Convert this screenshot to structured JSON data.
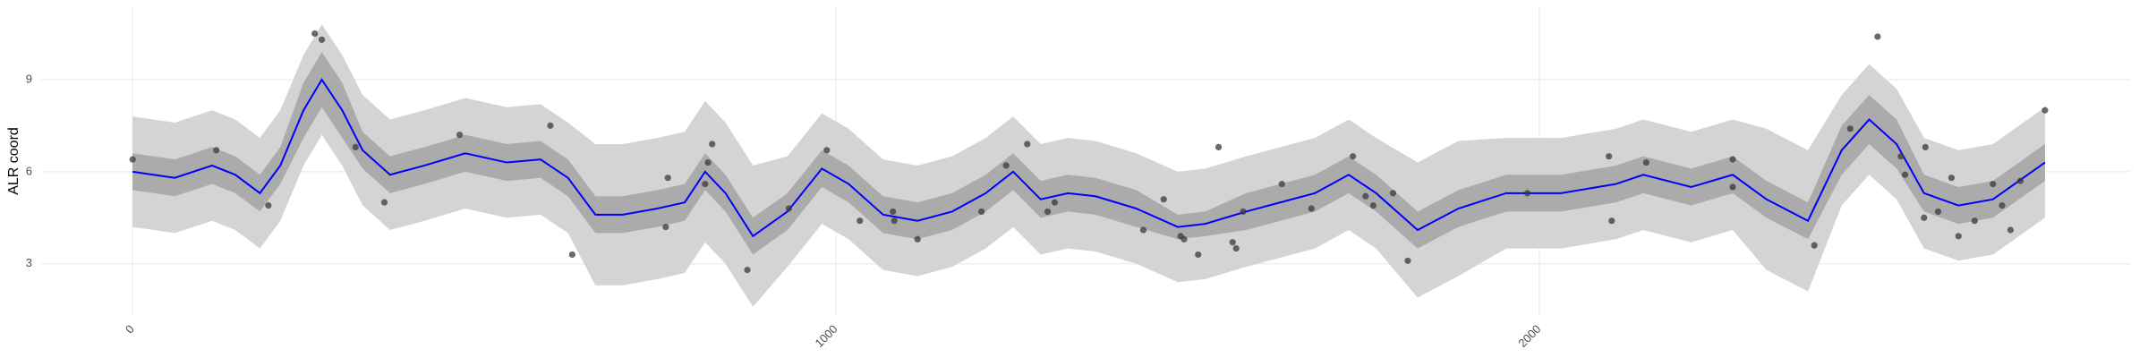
{
  "chart_data": {
    "type": "line",
    "y_label": "ALR coord",
    "xlim": [
      -130,
      2840
    ],
    "ylim": [
      1.33,
      11.36
    ],
    "xticks": [
      0,
      1000,
      2000
    ],
    "yticks": [
      3,
      6,
      9
    ],
    "grid": true,
    "x": [
      0,
      60,
      113,
      146,
      181,
      210,
      243,
      269,
      298,
      327,
      366,
      415,
      473,
      532,
      580,
      619,
      658,
      697,
      746,
      785,
      814,
      843,
      882,
      931,
      980,
      1018,
      1067,
      1116,
      1165,
      1213,
      1252,
      1291,
      1330,
      1369,
      1427,
      1486,
      1525,
      1583,
      1632,
      1681,
      1729,
      1768,
      1827,
      1885,
      1953,
      2031,
      2109,
      2148,
      2216,
      2275,
      2323,
      2382,
      2430,
      2469,
      2508,
      2547,
      2596,
      2645,
      2719
    ],
    "outer_band": {
      "color": "#d4d4d4",
      "lower": [
        4.2,
        4.0,
        4.4,
        4.1,
        3.5,
        4.4,
        6.2,
        7.2,
        6.2,
        4.9,
        4.1,
        4.4,
        4.8,
        4.5,
        4.6,
        4.0,
        2.3,
        2.3,
        2.5,
        2.7,
        3.7,
        3.0,
        1.6,
        2.9,
        4.3,
        3.8,
        2.8,
        2.6,
        2.9,
        3.5,
        4.2,
        3.3,
        3.5,
        3.4,
        3.0,
        2.4,
        2.5,
        2.9,
        3.2,
        3.5,
        4.1,
        3.5,
        1.9,
        2.6,
        3.5,
        3.5,
        3.8,
        4.1,
        3.7,
        4.1,
        2.8,
        2.1,
        4.9,
        5.9,
        5.1,
        3.5,
        3.1,
        3.3,
        4.5
      ],
      "upper": [
        7.8,
        7.6,
        8.0,
        7.7,
        7.1,
        8.0,
        9.8,
        10.8,
        9.8,
        8.5,
        7.7,
        8.0,
        8.4,
        8.1,
        8.2,
        7.6,
        6.9,
        6.9,
        7.1,
        7.3,
        8.3,
        7.6,
        6.2,
        6.5,
        7.9,
        7.4,
        6.4,
        6.2,
        6.5,
        7.1,
        7.8,
        6.9,
        7.1,
        7.0,
        6.6,
        6.0,
        6.1,
        6.5,
        6.8,
        7.1,
        7.7,
        7.1,
        6.3,
        7.0,
        7.1,
        7.1,
        7.4,
        7.7,
        7.3,
        7.7,
        7.4,
        6.7,
        8.5,
        9.5,
        8.7,
        7.1,
        6.7,
        6.9,
        8.1
      ]
    },
    "inner_band": {
      "color": "#ababab",
      "lower": [
        5.4,
        5.2,
        5.6,
        5.3,
        4.7,
        5.6,
        7.1,
        8.1,
        7.1,
        6.1,
        5.3,
        5.6,
        6.0,
        5.7,
        5.8,
        5.2,
        4.0,
        4.0,
        4.2,
        4.4,
        5.4,
        4.7,
        3.3,
        4.1,
        5.5,
        5.0,
        4.0,
        3.8,
        4.1,
        4.7,
        5.4,
        4.5,
        4.7,
        4.6,
        4.2,
        3.8,
        3.9,
        4.1,
        4.4,
        4.7,
        5.3,
        4.7,
        3.5,
        4.2,
        4.7,
        4.7,
        5.0,
        5.3,
        4.9,
        5.3,
        4.5,
        3.8,
        5.9,
        6.9,
        6.1,
        4.7,
        4.3,
        4.5,
        5.7
      ],
      "upper": [
        6.6,
        6.4,
        6.8,
        6.5,
        5.9,
        6.8,
        8.9,
        9.9,
        8.9,
        7.3,
        6.5,
        6.8,
        7.2,
        6.9,
        7.0,
        6.4,
        5.2,
        5.2,
        5.4,
        5.6,
        6.6,
        5.9,
        4.5,
        5.3,
        6.7,
        6.2,
        5.2,
        5.0,
        5.3,
        5.9,
        6.6,
        5.7,
        5.9,
        5.8,
        5.4,
        4.6,
        4.7,
        5.3,
        5.6,
        5.9,
        6.5,
        5.9,
        4.7,
        5.4,
        5.9,
        5.9,
        6.2,
        6.5,
        6.1,
        6.5,
        5.7,
        5.0,
        7.5,
        8.5,
        7.7,
        5.9,
        5.5,
        5.7,
        6.9
      ]
    },
    "line": {
      "color": "#0000ff",
      "values": [
        6.0,
        5.8,
        6.2,
        5.9,
        5.3,
        6.2,
        8.0,
        9.0,
        8.0,
        6.7,
        5.9,
        6.2,
        6.6,
        6.3,
        6.4,
        5.8,
        4.6,
        4.6,
        4.8,
        5.0,
        6.0,
        5.3,
        3.9,
        4.7,
        6.1,
        5.6,
        4.6,
        4.4,
        4.7,
        5.3,
        6.0,
        5.1,
        5.3,
        5.2,
        4.8,
        4.2,
        4.3,
        4.7,
        5.0,
        5.3,
        5.9,
        5.3,
        4.1,
        4.8,
        5.3,
        5.3,
        5.6,
        5.9,
        5.5,
        5.9,
        5.1,
        4.4,
        6.7,
        7.7,
        6.9,
        5.3,
        4.9,
        5.1,
        6.3
      ]
    },
    "points": {
      "color": "#3a3a3a",
      "x": [
        0,
        119,
        193,
        259,
        269,
        317,
        358,
        465,
        594,
        625,
        758,
        761,
        814,
        818,
        824,
        874,
        933,
        987,
        1034,
        1081,
        1083,
        1116,
        1207,
        1242,
        1272,
        1301,
        1311,
        1437,
        1466,
        1490,
        1495,
        1515,
        1544,
        1564,
        1569,
        1579,
        1634,
        1676,
        1735,
        1753,
        1764,
        1792,
        1813,
        1983,
        2099,
        2103,
        2152,
        2275,
        2275,
        2391,
        2442,
        2481,
        2514,
        2520,
        2549,
        2547,
        2567,
        2586,
        2596,
        2619,
        2645,
        2658,
        2670,
        2684,
        2719
      ],
      "y": [
        6.4,
        6.7,
        4.9,
        10.5,
        10.3,
        6.8,
        5.0,
        7.2,
        7.5,
        3.3,
        4.2,
        5.8,
        5.6,
        6.3,
        6.9,
        2.8,
        4.8,
        6.7,
        4.4,
        4.7,
        4.4,
        3.8,
        4.7,
        6.2,
        6.9,
        4.7,
        5.0,
        4.1,
        5.1,
        3.9,
        3.8,
        3.3,
        6.8,
        3.7,
        3.5,
        4.7,
        5.6,
        4.8,
        6.5,
        5.2,
        4.9,
        5.3,
        3.1,
        5.3,
        6.5,
        4.4,
        6.3,
        6.4,
        5.5,
        3.6,
        7.4,
        10.4,
        6.5,
        5.9,
        6.8,
        4.5,
        4.7,
        5.8,
        3.9,
        4.4,
        5.6,
        4.9,
        4.1,
        5.7,
        8.0
      ]
    }
  }
}
